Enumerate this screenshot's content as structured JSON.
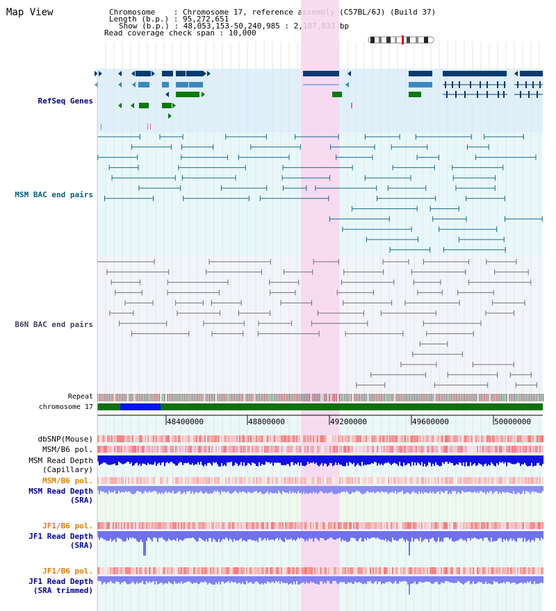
{
  "view": {
    "title": "Map View",
    "chromosome_label": "Chromosome",
    "chromosome_value": "Chromosome 17, reference assembly (C57BL/6J) (Build 37)",
    "length_label": "Length (b.p.)",
    "length_value": "95,272,651",
    "show_label": "Show (b.p.)",
    "show_value": "48,053,153-50,240,985 : 2,187,833 bp",
    "coverage_label": "Read coverage check span",
    "coverage_value": "10,000"
  },
  "tracks": {
    "refseq": "RefSeq Genes",
    "msm_bac": "MSM BAC end pairs",
    "b6n_bac": "B6N BAC end pairs",
    "repeat": "Repeat",
    "chrom": "chromosome 17",
    "dbsnp": "dbSNP(Mouse)",
    "msm_pol_cap": "MSM/B6 pol.",
    "msm_depth_cap": "MSM Read Depth\n(Capillary)",
    "msm_pol_sra": "MSM/B6 pol.",
    "msm_depth_sra": "MSM Read Depth\n(SRA)",
    "jf1_pol_sra": "JF1/B6 pol.",
    "jf1_depth_sra": "JF1 Read Depth\n(SRA)",
    "jf1_pol_trim": "JF1/B6 pol.",
    "jf1_depth_trim": "JF1 Read Depth\n(SRA trimmed)"
  },
  "axis": {
    "ticks": [
      "48400000",
      "48800000",
      "49200000",
      "49600000",
      "50000000"
    ]
  },
  "colors": {
    "refseq_label": "#000080",
    "msm_label": "#006080",
    "b6n_label": "#404060",
    "orange_label": "#e08000",
    "blue_label": "#0000a0",
    "highlight": "#f8d8f0"
  }
}
